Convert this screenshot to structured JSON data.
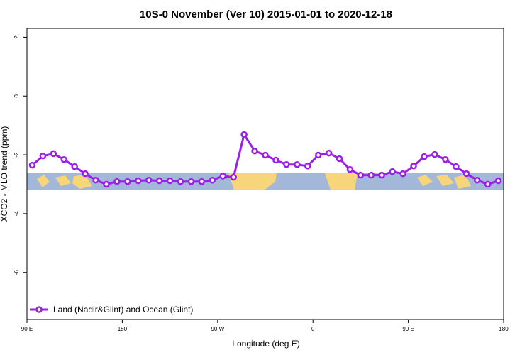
{
  "chart_data": {
    "type": "line",
    "title": "10S-0 November (Ver 10)   2015-01-01 to 2020-12-18",
    "x_label": "Longitude (deg E)",
    "y_label": "XCO2 - MLO trend (ppm)",
    "x": [
      95,
      105,
      115,
      125,
      135,
      145,
      155,
      165,
      175,
      185,
      195,
      205,
      215,
      225,
      235,
      245,
      255,
      265,
      275,
      285,
      295,
      305,
      315,
      325,
      335,
      345,
      355,
      365,
      375,
      385,
      395,
      405,
      415,
      425,
      435,
      445,
      455,
      465,
      475,
      485,
      495,
      505,
      515,
      525,
      535
    ],
    "series": [
      {
        "name": "Land (Nadir&Glint) and Ocean (Glint)",
        "color": "#9b1fe8",
        "values": [
          -2.35,
          -2.04,
          -1.96,
          -2.16,
          -2.4,
          -2.64,
          -2.86,
          -3.0,
          -2.91,
          -2.91,
          -2.88,
          -2.86,
          -2.88,
          -2.88,
          -2.91,
          -2.91,
          -2.91,
          -2.86,
          -2.72,
          -2.76,
          -1.31,
          -1.87,
          -2.01,
          -2.18,
          -2.33,
          -2.33,
          -2.38,
          -2.01,
          -1.94,
          -2.13,
          -2.5,
          -2.69,
          -2.69,
          -2.69,
          -2.57,
          -2.64,
          -2.38,
          -2.06,
          -1.99,
          -2.16,
          -2.4,
          -2.64,
          -2.86,
          -3.0,
          -2.88
        ]
      }
    ],
    "xlim": [
      90,
      540
    ],
    "xticks": [
      {
        "value": 90,
        "label": "90 E"
      },
      180,
      {
        "value": 270,
        "label": "90 W"
      },
      {
        "value": 360,
        "label": "0"
      },
      {
        "value": 450,
        "label": "90 E"
      },
      {
        "value": 540,
        "label": "180"
      }
    ],
    "ylim": [
      -7.6,
      2.3
    ],
    "yticks": [
      2,
      0,
      -2,
      -4,
      -6
    ],
    "legend": "bottom-left"
  }
}
